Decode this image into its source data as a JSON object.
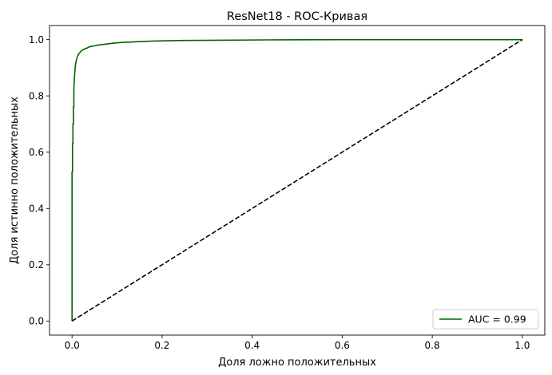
{
  "chart_data": {
    "type": "line",
    "title": "ResNet18 - ROC-Кривая",
    "xlabel": "Доля ложно положительных",
    "ylabel": "Доля истинно положительных",
    "xlim": [
      -0.05,
      1.05
    ],
    "ylim": [
      -0.05,
      1.05
    ],
    "xticks": [
      0.0,
      0.2,
      0.4,
      0.6,
      0.8,
      1.0
    ],
    "yticks": [
      0.0,
      0.2,
      0.4,
      0.6,
      0.8,
      1.0
    ],
    "xtick_labels": [
      "0.0",
      "0.2",
      "0.4",
      "0.6",
      "0.8",
      "1.0"
    ],
    "ytick_labels": [
      "0.0",
      "0.2",
      "0.4",
      "0.6",
      "0.8",
      "1.0"
    ],
    "grid": false,
    "legend_position": "bottom-right",
    "series": [
      {
        "name": "AUC = 0.99",
        "color": "#006400",
        "style": "solid",
        "x": [
          0.0,
          0.0,
          0.001,
          0.001,
          0.002,
          0.002,
          0.003,
          0.003,
          0.004,
          0.004,
          0.005,
          0.006,
          0.007,
          0.008,
          0.01,
          0.012,
          0.015,
          0.018,
          0.022,
          0.027,
          0.033,
          0.04,
          0.05,
          0.06,
          0.075,
          0.09,
          0.11,
          0.14,
          0.18,
          0.25,
          0.43,
          0.6,
          0.8,
          1.0
        ],
        "y": [
          0.0,
          0.53,
          0.53,
          0.63,
          0.63,
          0.7,
          0.7,
          0.76,
          0.76,
          0.82,
          0.86,
          0.88,
          0.9,
          0.915,
          0.93,
          0.94,
          0.95,
          0.955,
          0.962,
          0.966,
          0.97,
          0.975,
          0.978,
          0.981,
          0.984,
          0.987,
          0.99,
          0.992,
          0.995,
          0.997,
          0.999,
          1.0,
          1.0,
          1.0
        ]
      },
      {
        "name": "",
        "color": "#000000",
        "style": "dashed",
        "x": [
          0.0,
          1.0
        ],
        "y": [
          0.0,
          1.0
        ]
      }
    ]
  }
}
